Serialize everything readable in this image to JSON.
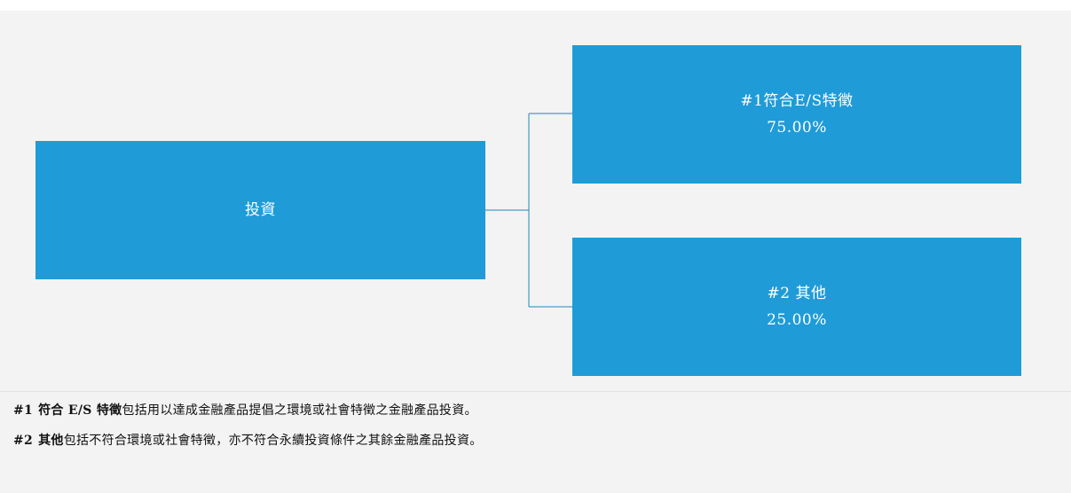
{
  "diagram": {
    "root": {
      "label": "投資"
    },
    "branches": [
      {
        "label": "#1符合E/S特徵",
        "value": "75.00%"
      },
      {
        "label": "#2 其他",
        "value": "25.00%"
      }
    ],
    "box_color": "#1f9bd8",
    "connector_color": "#1f86bd"
  },
  "footnotes": [
    {
      "marker": "#1",
      "term": "符合 E/S 特徵",
      "text": "包括用以達成金融產品提倡之環境或社會特徵之金融產品投資。"
    },
    {
      "marker": "#2",
      "term": "其他",
      "text": "包括不符合環境或社會特徵，亦不符合永續投資條件之其餘金融產品投資。"
    }
  ]
}
